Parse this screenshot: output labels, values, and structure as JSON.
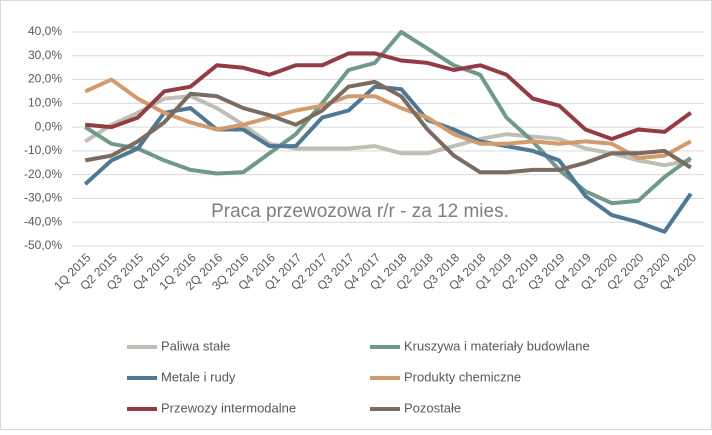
{
  "chart_data": {
    "type": "line",
    "annotation": "Praca przewozowa r/r - za 12 mies.",
    "categories": [
      "1Q 2015",
      "Q2 2015",
      "Q3 2015",
      "Q4 2015",
      "1Q 2016",
      "2Q 2016",
      "3Q 2016",
      "Q4 2016",
      "Q1 2017",
      "Q2 2017",
      "Q3 2017",
      "Q4 2017",
      "Q1 2018",
      "Q2 2018",
      "Q3 2018",
      "Q4 2018",
      "Q1 2019",
      "Q2 2019",
      "Q3 2019",
      "Q4 2019",
      "Q1 2020",
      "Q2 2020",
      "Q3 2020",
      "Q4 2020"
    ],
    "series": [
      {
        "name": "Paliwa stałe",
        "color": "#bfbfb6",
        "values": [
          -6,
          1,
          6,
          12,
          13,
          8,
          1,
          -7,
          -9,
          -9,
          -9,
          -8,
          -11,
          -11,
          -8,
          -5,
          -3,
          -4,
          -5,
          -9,
          -11,
          -14,
          -16,
          -14
        ]
      },
      {
        "name": "Kruszywa i materiały budowlane",
        "color": "#6f9a8a",
        "values": [
          0,
          -7,
          -9,
          -14,
          -18,
          -19.5,
          -19,
          -11,
          -3,
          10,
          24,
          27,
          40,
          33,
          26,
          22,
          4,
          -6,
          -18,
          -27,
          -32,
          -31,
          -21,
          -13
        ]
      },
      {
        "name": "Metale i rudy",
        "color": "#4f7796",
        "values": [
          -24,
          -14,
          -9,
          6,
          8,
          -1,
          -1,
          -8,
          -8,
          4,
          7,
          17,
          16,
          3,
          -1,
          -6,
          -8,
          -10,
          -14,
          -29,
          -37,
          -40,
          -44,
          -28
        ]
      },
      {
        "name": "Produkty chemiczne",
        "color": "#d19b6e",
        "values": [
          15,
          20,
          12,
          6,
          2,
          -1,
          1,
          4,
          7,
          9,
          13,
          13,
          8,
          4,
          -3,
          -7,
          -7,
          -6,
          -7,
          -6,
          -7,
          -13,
          -12,
          -6
        ]
      },
      {
        "name": "Przewozy intermodalne",
        "color": "#943c41",
        "values": [
          1,
          0,
          4,
          15,
          17,
          26,
          25,
          22,
          26,
          26,
          31,
          31,
          28,
          27,
          24,
          26,
          22,
          12,
          9,
          -1,
          -5,
          -1,
          -2,
          6
        ]
      },
      {
        "name": "Pozostałe",
        "color": "#7b6b60",
        "values": [
          -14,
          -12,
          -6,
          2,
          14,
          13,
          8,
          5,
          1,
          7,
          17,
          19,
          13,
          -1,
          -12,
          -19,
          -19,
          -18,
          -18,
          -15,
          -11,
          -11,
          -10,
          -17
        ]
      }
    ],
    "ylim": [
      -50,
      40
    ],
    "yticks": [
      {
        "value": -50,
        "label": "-50,0%"
      },
      {
        "value": -40,
        "label": "-40,0%"
      },
      {
        "value": -30,
        "label": "-30,0%"
      },
      {
        "value": -20,
        "label": "-20,0%"
      },
      {
        "value": -10,
        "label": "-10,0%"
      },
      {
        "value": 0,
        "label": "0,0%"
      },
      {
        "value": 10,
        "label": "10,0%"
      },
      {
        "value": 20,
        "label": "20,0%"
      },
      {
        "value": 30,
        "label": "30,0%"
      },
      {
        "value": 40,
        "label": "40,0%"
      }
    ],
    "grid": true
  }
}
